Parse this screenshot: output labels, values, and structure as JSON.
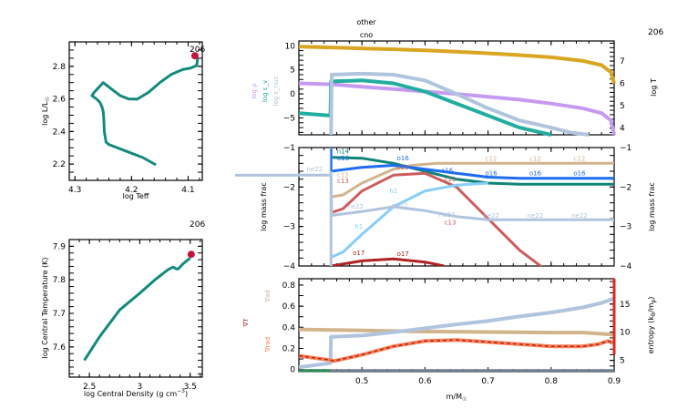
{
  "chart_data": [
    {
      "id": "hr",
      "type": "line",
      "title": "",
      "model_number": "206",
      "xlabel": "log Teff",
      "ylabel": "log L/L_sun",
      "xlim": [
        4.31,
        4.075
      ],
      "ylim": [
        2.1,
        2.95
      ],
      "xticks": [
        4.3,
        4.2,
        4.1
      ],
      "xtick_labels": [
        "4.3",
        "4.2",
        "4.1"
      ],
      "yticks": [
        2.2,
        2.4,
        2.6,
        2.8
      ],
      "ytick_labels": [
        "2.2",
        "2.4",
        "2.6",
        "2.8"
      ],
      "series": [
        {
          "name": "track",
          "color": "#138a7c",
          "x": [
            4.157,
            4.18,
            4.21,
            4.24,
            4.245,
            4.248,
            4.249,
            4.25,
            4.252,
            4.256,
            4.262,
            4.27,
            4.266,
            4.25,
            4.235,
            4.22,
            4.205,
            4.19,
            4.17,
            4.15,
            4.13,
            4.11,
            4.095,
            4.085,
            4.083
          ],
          "y": [
            2.195,
            2.24,
            2.28,
            2.32,
            2.335,
            2.4,
            2.48,
            2.52,
            2.55,
            2.58,
            2.6,
            2.62,
            2.64,
            2.7,
            2.66,
            2.62,
            2.6,
            2.598,
            2.64,
            2.7,
            2.75,
            2.78,
            2.79,
            2.805,
            2.85
          ]
        }
      ],
      "marker": {
        "x": 4.088,
        "y": 2.865,
        "color": "#c8103c"
      }
    },
    {
      "id": "center",
      "type": "line",
      "title": "",
      "model_number": "206",
      "xlabel": "log Central Density (g cm^-3)",
      "ylabel": "log Central Temperature (K)",
      "xlim": [
        2.3,
        3.62
      ],
      "ylim": [
        7.51,
        7.92
      ],
      "xticks": [
        2.5,
        3.0,
        3.5
      ],
      "xtick_labels": [
        "2.5",
        "3",
        "3.5"
      ],
      "yticks": [
        7.6,
        7.7,
        7.8,
        7.9
      ],
      "ytick_labels": [
        "7.6",
        "7.7",
        "7.8",
        "7.9"
      ],
      "series": [
        {
          "name": "center",
          "color": "#138a7c",
          "x": [
            2.45,
            2.6,
            2.8,
            3.0,
            3.15,
            3.28,
            3.33,
            3.36,
            3.38,
            3.43,
            3.5
          ],
          "y": [
            7.56,
            7.63,
            7.71,
            7.76,
            7.8,
            7.83,
            7.838,
            7.833,
            7.832,
            7.848,
            7.865
          ]
        }
      ],
      "marker": {
        "x": 3.51,
        "y": 7.876,
        "color": "#c8103c"
      }
    },
    {
      "id": "profile-top",
      "type": "line",
      "header_lines": [
        "other",
        "cno"
      ],
      "model_number": "206",
      "xlim": [
        0.4,
        0.9
      ],
      "ylim_left": [
        -8.5,
        11
      ],
      "ylim_right": [
        3.7,
        7.9
      ],
      "yticks_left": [
        -5,
        0,
        5,
        10
      ],
      "ytick_labels_left": [
        "−5",
        "0",
        "5",
        "10"
      ],
      "yticks_right": [
        4,
        5,
        6,
        7
      ],
      "ytick_labels_right": [
        "4",
        "5",
        "6",
        "7"
      ],
      "legend_left": [
        {
          "label": "log ρ",
          "color": "#c69af0"
        },
        {
          "label": "log ε_v",
          "color": "#22ada0"
        },
        {
          "label": "log ε_nuc",
          "color": "#b0c4de"
        }
      ],
      "ylabel_right": "log T",
      "series": [
        {
          "name": "log T",
          "axis": "right",
          "color": "#daa520",
          "x": [
            0.4,
            0.45,
            0.5,
            0.55,
            0.6,
            0.65,
            0.7,
            0.75,
            0.8,
            0.85,
            0.88,
            0.895,
            0.9
          ],
          "y": [
            7.65,
            7.61,
            7.57,
            7.53,
            7.48,
            7.42,
            7.35,
            7.27,
            7.17,
            7.01,
            6.82,
            6.5,
            6.0
          ]
        },
        {
          "name": "log rho",
          "axis": "left",
          "color": "#c69af0",
          "x": [
            0.4,
            0.45,
            0.5,
            0.55,
            0.6,
            0.65,
            0.7,
            0.75,
            0.8,
            0.85,
            0.88,
            0.895,
            0.9
          ],
          "y": [
            2.2,
            2.0,
            1.5,
            1.0,
            0.5,
            0.0,
            -0.6,
            -1.2,
            -2.0,
            -3.0,
            -4.0,
            -5.5,
            -8.5
          ]
        },
        {
          "name": "log eps_nu",
          "axis": "left",
          "color": "#22ada0",
          "x": [
            0.4,
            0.45,
            0.451,
            0.5,
            0.55,
            0.6,
            0.65,
            0.7,
            0.75,
            0.8
          ],
          "y": [
            -4.0,
            -4.5,
            2.6,
            2.8,
            2.2,
            0.5,
            -2.0,
            -4.5,
            -7.0,
            -8.5
          ]
        },
        {
          "name": "log eps_nuc",
          "axis": "left",
          "color": "#b0c4de",
          "x": [
            0.451,
            0.452,
            0.5,
            0.55,
            0.6,
            0.65,
            0.7,
            0.75,
            0.8,
            0.83,
            0.86
          ],
          "y": [
            -8.5,
            4.0,
            4.2,
            4.0,
            2.8,
            0.0,
            -3.0,
            -5.5,
            -7.0,
            -8.0,
            -8.5
          ]
        }
      ]
    },
    {
      "id": "profile-abund",
      "type": "line",
      "xlim": [
        0.4,
        0.9
      ],
      "ylim": [
        -4,
        -1
      ],
      "yticks": [
        -4,
        -3,
        -2,
        -1
      ],
      "ytick_labels": [
        "−4",
        "−3",
        "−2",
        "−1"
      ],
      "ylabel": "log mass frac",
      "series": [
        {
          "name": "c12",
          "color": "#d2b48c",
          "x": [
            0.451,
            0.47,
            0.5,
            0.55,
            0.58,
            0.62,
            0.7,
            0.8,
            0.9
          ],
          "y": [
            -2.25,
            -2.2,
            -1.9,
            -1.55,
            -1.45,
            -1.4,
            -1.4,
            -1.4,
            -1.4
          ]
        },
        {
          "name": "n14",
          "color": "#0f8477",
          "x": [
            0.451,
            0.5,
            0.55,
            0.6,
            0.65,
            0.7,
            0.75,
            0.9
          ],
          "y": [
            -1.25,
            -1.27,
            -1.4,
            -1.6,
            -1.8,
            -1.9,
            -1.93,
            -1.93
          ]
        },
        {
          "name": "o16",
          "color": "#1e6cf0",
          "x": [
            0.451,
            0.5,
            0.55,
            0.6,
            0.65,
            0.7,
            0.75,
            0.9
          ],
          "y": [
            -1.6,
            -1.5,
            -1.45,
            -1.55,
            -1.65,
            -1.75,
            -1.78,
            -1.78
          ]
        },
        {
          "name": "c13",
          "color": "#cd5c5c",
          "x": [
            0.451,
            0.47,
            0.5,
            0.55,
            0.6,
            0.65,
            0.7,
            0.75,
            0.8
          ],
          "y": [
            -2.65,
            -2.55,
            -2.1,
            -1.7,
            -1.65,
            -2.0,
            -2.8,
            -3.6,
            -4.2
          ]
        },
        {
          "name": "h1",
          "color": "#87cefa",
          "x": [
            0.451,
            0.47,
            0.5,
            0.55,
            0.6,
            0.65,
            0.7
          ],
          "y": [
            -3.78,
            -3.65,
            -3.2,
            -2.5,
            -2.1,
            -1.95,
            -1.9
          ]
        },
        {
          "name": "ne22",
          "color": "#b0c4de",
          "x": [
            0.4,
            0.451,
            0.452,
            0.5,
            0.55,
            0.6,
            0.65,
            0.7,
            0.9
          ],
          "y": [
            -1.7,
            -1.7,
            -2.72,
            -2.62,
            -2.5,
            -2.6,
            -2.75,
            -2.83,
            -2.83
          ]
        },
        {
          "name": "o17",
          "color": "#b22222",
          "x": [
            0.451,
            0.5,
            0.55,
            0.6,
            0.63
          ],
          "y": [
            -4.0,
            -3.87,
            -3.82,
            -3.9,
            -4.0
          ]
        }
      ],
      "line_labels": [
        {
          "text": "n14",
          "color": "#0f8477",
          "x": 0.47,
          "y": -1.15
        },
        {
          "text": "o16",
          "color": "#1e6cf0",
          "x": 0.47,
          "y": -1.32
        },
        {
          "text": "ne22",
          "color": "#b0c4de",
          "x": 0.425,
          "y": -1.6
        },
        {
          "text": "c12",
          "color": "#d2b48c",
          "x": 0.47,
          "y": -1.75
        },
        {
          "text": "c13",
          "color": "#cd5c5c",
          "x": 0.47,
          "y": -1.9
        },
        {
          "text": "o16",
          "color": "#1e6cf0",
          "x": 0.565,
          "y": -1.32
        },
        {
          "text": "c13",
          "color": "#cd5c5c",
          "x": 0.565,
          "y": -1.55
        },
        {
          "text": "c12",
          "color": "#d2b48c",
          "x": 0.705,
          "y": -1.33
        },
        {
          "text": "c12",
          "color": "#d2b48c",
          "x": 0.775,
          "y": -1.33
        },
        {
          "text": "c12",
          "color": "#d2b48c",
          "x": 0.845,
          "y": -1.33
        },
        {
          "text": "o16",
          "color": "#1e6cf0",
          "x": 0.635,
          "y": -1.64
        },
        {
          "text": "o16",
          "color": "#1e6cf0",
          "x": 0.705,
          "y": -1.7
        },
        {
          "text": "o16",
          "color": "#1e6cf0",
          "x": 0.775,
          "y": -1.7
        },
        {
          "text": "o16",
          "color": "#1e6cf0",
          "x": 0.845,
          "y": -1.7
        },
        {
          "text": "h1",
          "color": "#87cefa",
          "x": 0.55,
          "y": -2.15
        },
        {
          "text": "h1",
          "color": "#87cefa",
          "x": 0.495,
          "y": -3.05
        },
        {
          "text": "c13",
          "color": "#cd5c5c",
          "x": 0.64,
          "y": -1.85
        },
        {
          "text": "ne22",
          "color": "#b0c4de",
          "x": 0.49,
          "y": -2.55
        },
        {
          "text": "ne22",
          "color": "#b0c4de",
          "x": 0.56,
          "y": -2.52
        },
        {
          "text": "ne22",
          "color": "#b0c4de",
          "x": 0.635,
          "y": -2.75
        },
        {
          "text": "ne22",
          "color": "#b0c4de",
          "x": 0.705,
          "y": -2.78
        },
        {
          "text": "ne22",
          "color": "#b0c4de",
          "x": 0.775,
          "y": -2.78
        },
        {
          "text": "ne22",
          "color": "#b0c4de",
          "x": 0.845,
          "y": -2.78
        },
        {
          "text": "c13",
          "color": "#cd5c5c",
          "x": 0.64,
          "y": -2.95
        },
        {
          "text": "o17",
          "color": "#b22222",
          "x": 0.495,
          "y": -3.72
        },
        {
          "text": "o17",
          "color": "#b22222",
          "x": 0.565,
          "y": -3.75
        }
      ]
    },
    {
      "id": "profile-grad",
      "type": "line",
      "xlim": [
        0.4,
        0.9
      ],
      "xticks": [
        0.5,
        0.6,
        0.7,
        0.8,
        0.9
      ],
      "xtick_labels": [
        "0.5",
        "0.6",
        "0.7",
        "0.8",
        "0.9"
      ],
      "xlabel": "m/M_sun",
      "ylim_left": [
        -0.02,
        0.86
      ],
      "yticks_left": [
        0,
        0.2,
        0.4,
        0.6,
        0.8
      ],
      "ytick_labels_left": [
        "0",
        "0.2",
        "0.4",
        "0.6",
        "0.8"
      ],
      "ylim_right": [
        3,
        19.5
      ],
      "yticks_right": [
        5,
        10,
        15
      ],
      "ytick_labels_right": [
        "5",
        "10",
        "15"
      ],
      "legend_left": [
        {
          "label": "∇ad",
          "color": "#d2b48c"
        },
        {
          "label": "∇T",
          "color": "#a52a2a"
        },
        {
          "label": "∇rad",
          "color": "#ff7f50"
        }
      ],
      "ylabel_right": "entropy (k_B/m_p)",
      "series": [
        {
          "name": "grad_ad",
          "axis": "left",
          "color": "#d2b48c",
          "x": [
            0.4,
            0.45,
            0.5,
            0.6,
            0.7,
            0.8,
            0.85,
            0.9
          ],
          "y": [
            0.38,
            0.375,
            0.37,
            0.36,
            0.355,
            0.35,
            0.35,
            0.33
          ]
        },
        {
          "name": "entropy",
          "axis": "right",
          "color": "#b0c4de",
          "x": [
            0.4,
            0.45,
            0.451,
            0.5,
            0.55,
            0.6,
            0.65,
            0.7,
            0.75,
            0.8,
            0.85,
            0.88,
            0.9
          ],
          "y": [
            3.8,
            4.5,
            9.2,
            9.4,
            10.0,
            10.7,
            11.4,
            12.0,
            12.8,
            13.5,
            14.4,
            15.2,
            16.0
          ]
        },
        {
          "name": "grad_rad",
          "axis": "left",
          "color": "#ff7f50",
          "x": [
            0.4,
            0.45,
            0.455,
            0.5,
            0.55,
            0.6,
            0.65,
            0.7,
            0.75,
            0.8,
            0.85,
            0.875,
            0.89,
            0.9
          ],
          "y": [
            0.13,
            0.09,
            0.08,
            0.14,
            0.22,
            0.27,
            0.28,
            0.26,
            0.24,
            0.22,
            0.22,
            0.24,
            0.27,
            0.25
          ]
        },
        {
          "name": "grad_T",
          "axis": "left",
          "color": "#a52a2a",
          "dashed": true,
          "x": [
            0.4,
            0.45,
            0.455,
            0.5,
            0.55,
            0.6,
            0.65,
            0.7,
            0.75,
            0.8,
            0.85,
            0.875,
            0.89,
            0.9
          ],
          "y": [
            0.13,
            0.09,
            0.08,
            0.14,
            0.22,
            0.27,
            0.28,
            0.26,
            0.24,
            0.22,
            0.22,
            0.24,
            0.27,
            0.25
          ]
        },
        {
          "name": "mixing",
          "axis": "left",
          "color": "#708090",
          "x": [
            0.4,
            0.9
          ],
          "y": [
            -0.01,
            -0.01
          ]
        }
      ]
    }
  ]
}
